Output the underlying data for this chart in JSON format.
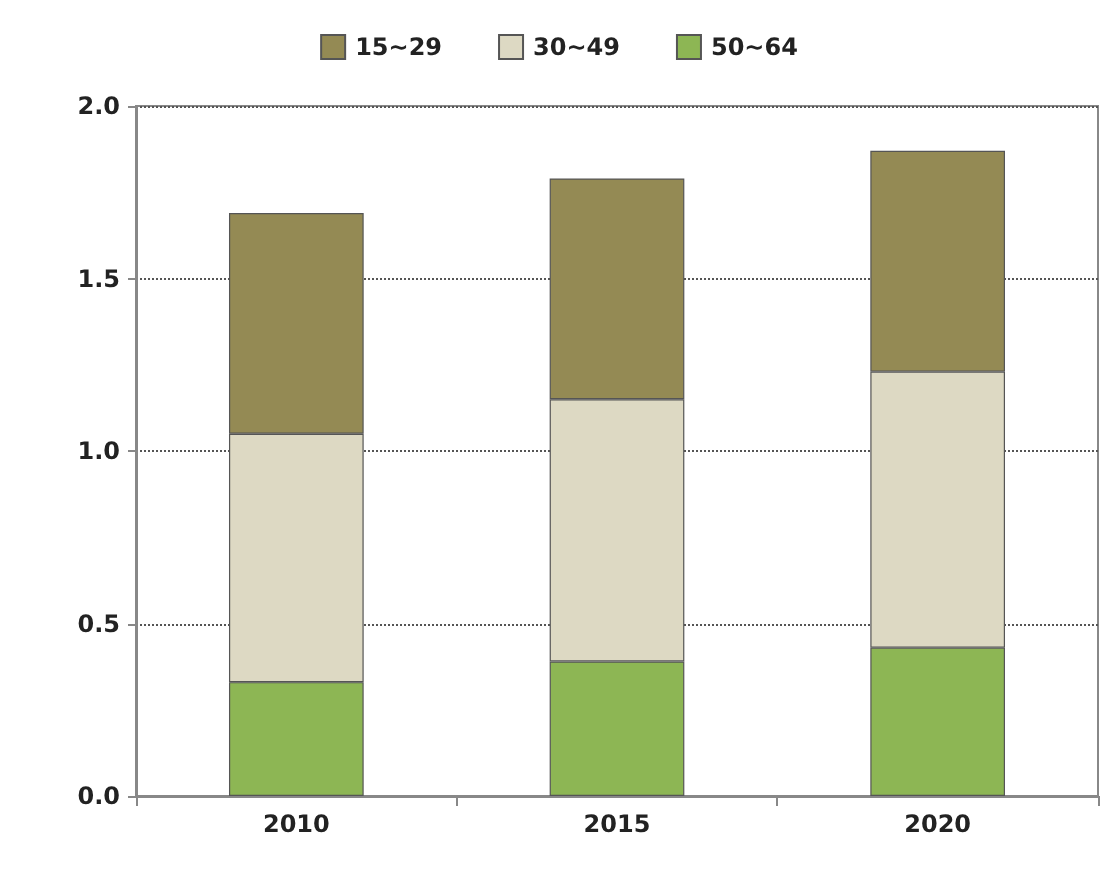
{
  "chart_data": {
    "type": "bar",
    "stacked": true,
    "categories": [
      "2010",
      "2015",
      "2020"
    ],
    "series": [
      {
        "name": "50~64",
        "color": "#8db654",
        "values": [
          0.33,
          0.39,
          0.43
        ]
      },
      {
        "name": "30~49",
        "color": "#ddd9c3",
        "values": [
          0.72,
          0.76,
          0.8
        ]
      },
      {
        "name": "15~29",
        "color": "#948a54",
        "values": [
          0.64,
          0.64,
          0.64
        ]
      }
    ],
    "ylim": [
      0,
      2
    ],
    "yticks": [
      {
        "value": 0,
        "label": "0.0"
      },
      {
        "value": 0.5,
        "label": "0.5"
      },
      {
        "value": 1,
        "label": "1.0"
      },
      {
        "value": 1.5,
        "label": "1.5"
      },
      {
        "value": 2,
        "label": "2.0"
      }
    ],
    "grid": "y",
    "legend": "top",
    "line_style": "dotted"
  }
}
